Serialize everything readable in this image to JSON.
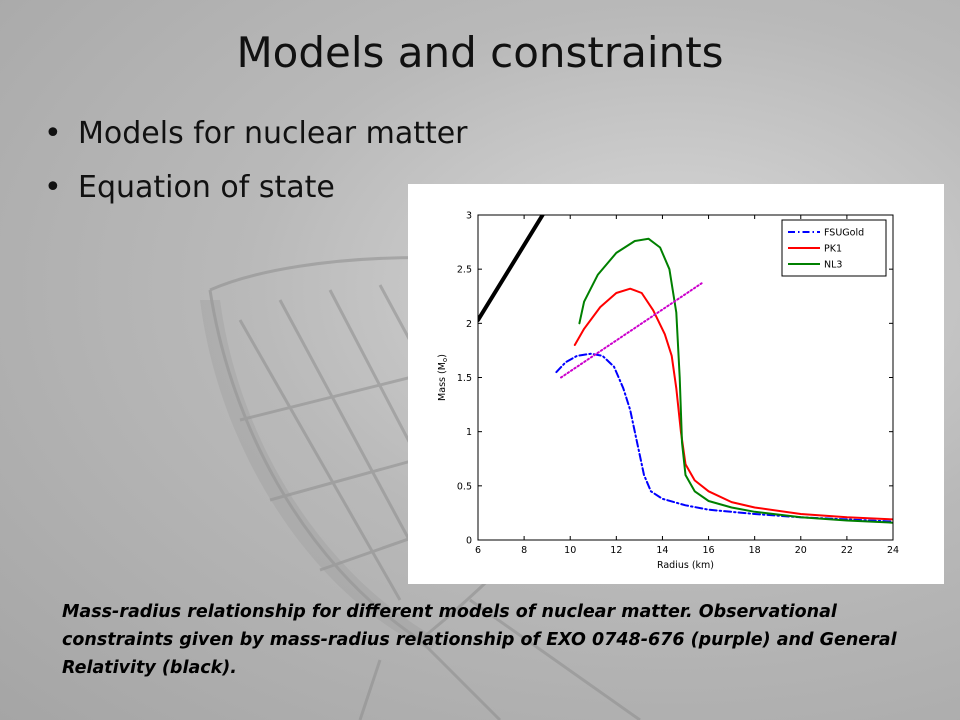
{
  "slide": {
    "title": "Models and constraints",
    "bullets": [
      "Models for nuclear matter",
      "Equation of state"
    ],
    "caption": "Mass-radius relationship for different models of nuclear matter. Observational constraints given by mass-radius relationship of EXO 0748-676 (purple) and General Relativity (black)."
  },
  "chart_data": {
    "type": "line",
    "xlabel": "Radius (km)",
    "ylabel": "Mass (M",
    "ylabel_sub": "o",
    "ylabel_end": ")",
    "xlim": [
      6,
      24
    ],
    "ylim": [
      0,
      3
    ],
    "xticks": [
      6,
      8,
      10,
      12,
      14,
      16,
      18,
      20,
      22,
      24
    ],
    "yticks": [
      0,
      0.5,
      1,
      1.5,
      2,
      2.5,
      3
    ],
    "grid": false,
    "legend_position": "top-right",
    "series": [
      {
        "name": "FSUGold",
        "color": "#0000ff",
        "dash": "dashdot",
        "legend": true,
        "x": [
          9.4,
          9.8,
          10.3,
          10.9,
          11.4,
          11.9,
          12.3,
          12.6,
          12.8,
          13.0,
          13.2,
          13.5,
          14.0,
          15.0,
          16.0,
          18.0,
          20.0,
          22.0,
          24.0
        ],
        "y": [
          1.55,
          1.64,
          1.7,
          1.72,
          1.7,
          1.6,
          1.4,
          1.2,
          1.0,
          0.8,
          0.6,
          0.45,
          0.38,
          0.32,
          0.28,
          0.24,
          0.21,
          0.19,
          0.17
        ]
      },
      {
        "name": "PK1",
        "color": "#ff0000",
        "dash": "solid",
        "legend": true,
        "x": [
          10.2,
          10.6,
          11.3,
          12.0,
          12.6,
          13.1,
          13.6,
          14.1,
          14.4,
          14.6,
          14.8,
          15.0,
          15.4,
          16.0,
          17.0,
          18.0,
          20.0,
          22.0,
          24.0
        ],
        "y": [
          1.8,
          1.95,
          2.15,
          2.28,
          2.32,
          2.28,
          2.12,
          1.9,
          1.7,
          1.4,
          1.0,
          0.7,
          0.55,
          0.45,
          0.35,
          0.3,
          0.24,
          0.21,
          0.19
        ]
      },
      {
        "name": "NL3",
        "color": "#008000",
        "dash": "solid",
        "legend": true,
        "x": [
          10.4,
          10.6,
          11.2,
          12.0,
          12.8,
          13.4,
          13.9,
          14.3,
          14.6,
          14.75,
          14.85,
          15.0,
          15.4,
          16.0,
          17.0,
          18.0,
          20.0,
          22.0,
          24.0
        ],
        "y": [
          2.0,
          2.2,
          2.45,
          2.65,
          2.76,
          2.78,
          2.7,
          2.5,
          2.1,
          1.5,
          0.9,
          0.6,
          0.45,
          0.36,
          0.3,
          0.26,
          0.21,
          0.18,
          0.16
        ]
      },
      {
        "name": "EXO 0748-676",
        "color": "#cc00cc",
        "dash": "dotted",
        "legend": false,
        "x": [
          9.6,
          15.7
        ],
        "y": [
          1.5,
          2.37
        ]
      },
      {
        "name": "General Relativity",
        "color": "#000000",
        "dash": "solid",
        "legend": false,
        "x": [
          6.0,
          8.8
        ],
        "y": [
          2.03,
          3.0
        ]
      }
    ]
  }
}
